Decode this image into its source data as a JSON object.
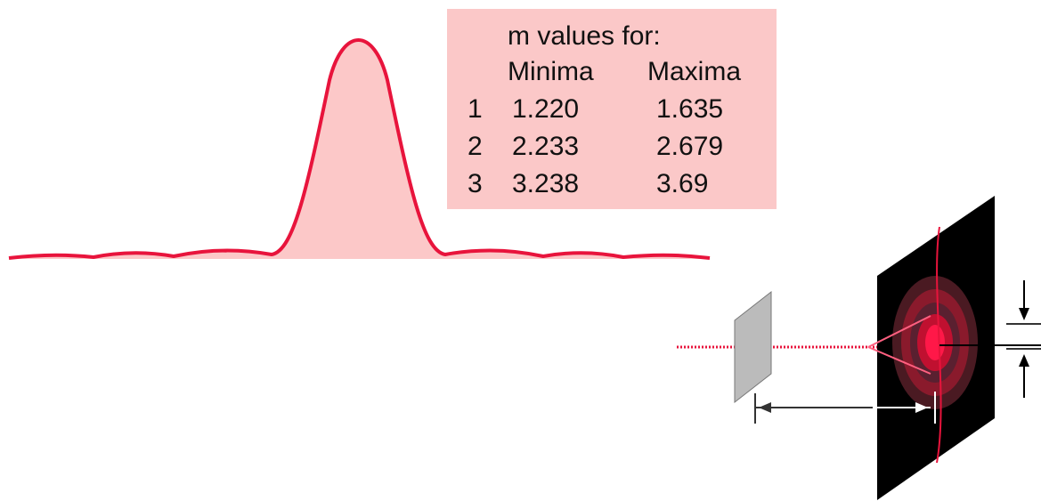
{
  "table": {
    "title": "m values for:",
    "headers": [
      "Minima",
      "Maxima"
    ],
    "rows": [
      [
        "1",
        "1.220",
        "1.635"
      ],
      [
        "2",
        "2.233",
        "2.679"
      ],
      [
        "3",
        "3.238",
        "3.69"
      ]
    ]
  }
}
